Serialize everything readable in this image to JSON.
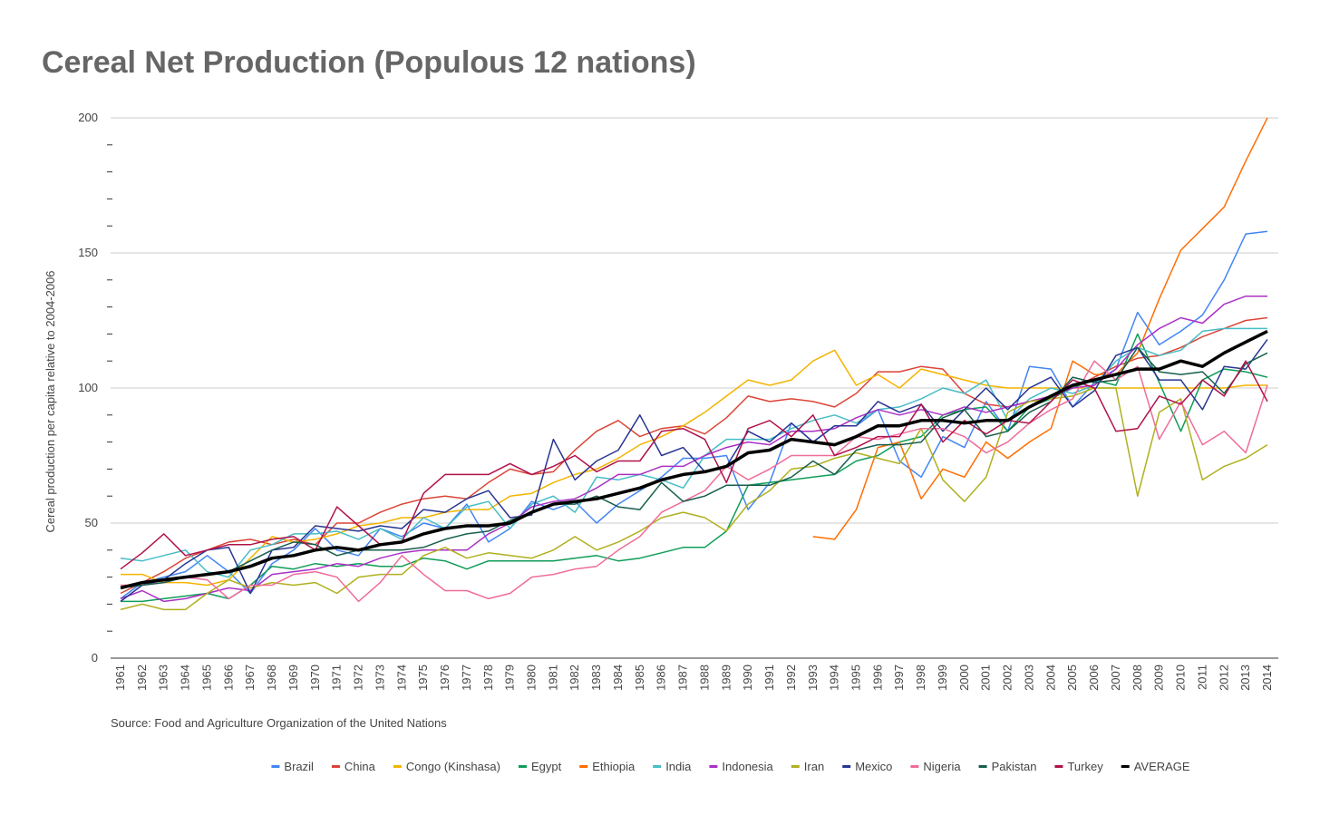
{
  "chart_data": {
    "type": "line",
    "title": "Cereal Net Production (Populous 12 nations)",
    "y_label": "Cereal production per capita relative to 2004-2006",
    "source": "Source: Food and Agriculture Organization of the United Nations",
    "categories": [
      "1961",
      "1962",
      "1963",
      "1964",
      "1965",
      "1966",
      "1967",
      "1968",
      "1969",
      "1970",
      "1971",
      "1972",
      "1973",
      "1974",
      "1975",
      "1976",
      "1977",
      "1978",
      "1979",
      "1980",
      "1981",
      "1982",
      "1983",
      "1984",
      "1985",
      "1986",
      "1987",
      "1988",
      "1989",
      "1990",
      "1991",
      "1992",
      "1993",
      "1994",
      "1995",
      "1996",
      "1997",
      "1998",
      "1999",
      "2000",
      "2001",
      "2002",
      "2003",
      "2004",
      "2005",
      "2006",
      "2007",
      "2008",
      "2009",
      "2010",
      "2011",
      "2012",
      "2013",
      "2014"
    ],
    "ylim": [
      0,
      200
    ],
    "yticks": [
      0,
      50,
      100,
      150,
      200
    ],
    "yminorticks": [
      10,
      20,
      30,
      40,
      60,
      70,
      80,
      90,
      110,
      120,
      130,
      140,
      160,
      170,
      180,
      190
    ],
    "grid": true,
    "legend": "bottom",
    "series": [
      {
        "name": "Brazil",
        "color": "#4285f4",
        "values": [
          22,
          28,
          30,
          32,
          38,
          32,
          24,
          35,
          40,
          48,
          40,
          38,
          48,
          45,
          50,
          48,
          57,
          43,
          48,
          58,
          55,
          58,
          50,
          57,
          62,
          67,
          74,
          74,
          75,
          55,
          65,
          87,
          80,
          86,
          86,
          92,
          73,
          67,
          82,
          78,
          95,
          84,
          108,
          107,
          93,
          102,
          107,
          128,
          116,
          121,
          127,
          140,
          157,
          158
        ]
      },
      {
        "name": "China",
        "color": "#db4437",
        "values": [
          24,
          28,
          32,
          37,
          40,
          43,
          44,
          42,
          44,
          42,
          50,
          50,
          54,
          57,
          59,
          60,
          59,
          65,
          70,
          68,
          69,
          77,
          84,
          88,
          82,
          85,
          86,
          83,
          89,
          97,
          95,
          96,
          95,
          93,
          98,
          106,
          106,
          108,
          107,
          98,
          94,
          93,
          95,
          97,
          100,
          104,
          108,
          111,
          112,
          115,
          119,
          122,
          125,
          126
        ]
      },
      {
        "name": "Congo (Kinshasa)",
        "color": "#f4b400",
        "values": [
          31,
          31,
          28,
          28,
          27,
          29,
          37,
          45,
          43,
          44,
          46,
          49,
          50,
          52,
          52,
          54,
          55,
          55,
          60,
          61,
          65,
          68,
          70,
          74,
          79,
          82,
          86,
          91,
          97,
          103,
          101,
          103,
          110,
          114,
          101,
          105,
          100,
          107,
          105,
          103,
          101,
          100,
          100,
          100,
          100,
          100,
          100,
          100,
          100,
          100,
          100,
          100,
          101,
          101
        ]
      },
      {
        "name": "Egypt",
        "color": "#0f9d58",
        "values": [
          21,
          21,
          22,
          23,
          24,
          22,
          27,
          34,
          33,
          35,
          34,
          35,
          34,
          34,
          37,
          36,
          33,
          36,
          36,
          36,
          36,
          37,
          38,
          36,
          37,
          39,
          41,
          41,
          47,
          64,
          65,
          66,
          67,
          68,
          73,
          75,
          80,
          82,
          90,
          92,
          93,
          84,
          93,
          96,
          100,
          103,
          101,
          120,
          102,
          84,
          103,
          107,
          106,
          104
        ]
      },
      {
        "name": "Ethiopia",
        "color": "#ff6d01",
        "values": [
          null,
          null,
          null,
          null,
          null,
          null,
          null,
          null,
          null,
          null,
          null,
          null,
          null,
          null,
          null,
          null,
          null,
          null,
          null,
          null,
          null,
          null,
          null,
          null,
          null,
          null,
          null,
          null,
          null,
          null,
          null,
          null,
          45,
          44,
          55,
          78,
          80,
          59,
          70,
          67,
          80,
          74,
          80,
          85,
          110,
          105,
          105,
          113,
          133,
          151,
          159,
          167,
          184,
          200
        ]
      },
      {
        "name": "India",
        "color": "#46bdc6",
        "values": [
          37,
          36,
          38,
          40,
          32,
          30,
          40,
          42,
          46,
          46,
          47,
          44,
          48,
          44,
          52,
          48,
          56,
          58,
          48,
          57,
          60,
          54,
          67,
          66,
          68,
          66,
          63,
          75,
          81,
          81,
          81,
          85,
          88,
          90,
          87,
          92,
          93,
          96,
          100,
          98,
          103,
          88,
          96,
          100,
          98,
          101,
          110,
          115,
          112,
          114,
          121,
          122,
          122,
          122
        ]
      },
      {
        "name": "Indonesia",
        "color": "#ab30c4",
        "values": [
          22,
          25,
          21,
          22,
          24,
          26,
          25,
          31,
          32,
          33,
          35,
          34,
          37,
          39,
          40,
          40,
          40,
          46,
          50,
          56,
          58,
          59,
          63,
          68,
          68,
          71,
          71,
          75,
          78,
          80,
          79,
          84,
          84,
          85,
          89,
          92,
          90,
          92,
          90,
          93,
          91,
          93,
          95,
          97,
          100,
          101,
          107,
          116,
          122,
          126,
          124,
          131,
          134,
          134
        ]
      },
      {
        "name": "Iran",
        "color": "#b0b01f",
        "values": [
          18,
          20,
          18,
          18,
          24,
          29,
          26,
          28,
          27,
          28,
          24,
          30,
          31,
          31,
          38,
          41,
          37,
          39,
          38,
          37,
          40,
          45,
          40,
          43,
          47,
          52,
          54,
          52,
          47,
          57,
          62,
          70,
          71,
          74,
          76,
          74,
          72,
          85,
          66,
          58,
          67,
          91,
          95,
          96,
          97,
          100,
          100,
          60,
          91,
          96,
          66,
          71,
          74,
          79
        ]
      },
      {
        "name": "Mexico",
        "color": "#283593",
        "values": [
          21,
          27,
          29,
          35,
          40,
          41,
          24,
          40,
          41,
          49,
          48,
          47,
          49,
          48,
          55,
          54,
          59,
          62,
          52,
          53,
          81,
          66,
          73,
          77,
          90,
          75,
          78,
          69,
          71,
          84,
          80,
          87,
          80,
          86,
          86,
          95,
          91,
          94,
          84,
          92,
          100,
          92,
          100,
          104,
          93,
          99,
          112,
          115,
          103,
          103,
          92,
          108,
          107,
          118
        ]
      },
      {
        "name": "Nigeria",
        "color": "#ef6c9a",
        "values": [
          27,
          27,
          28,
          30,
          29,
          22,
          27,
          27,
          31,
          32,
          30,
          21,
          28,
          38,
          31,
          25,
          25,
          22,
          24,
          30,
          31,
          33,
          34,
          40,
          45,
          54,
          58,
          62,
          71,
          66,
          70,
          75,
          75,
          75,
          82,
          81,
          83,
          85,
          85,
          82,
          76,
          80,
          87,
          92,
          96,
          110,
          103,
          108,
          81,
          95,
          79,
          84,
          76,
          101
        ]
      },
      {
        "name": "Pakistan",
        "color": "#185e4e",
        "values": [
          26,
          27,
          28,
          30,
          31,
          32,
          36,
          40,
          43,
          42,
          38,
          40,
          40,
          40,
          41,
          44,
          46,
          47,
          51,
          54,
          57,
          57,
          60,
          56,
          55,
          65,
          58,
          60,
          64,
          64,
          64,
          67,
          73,
          68,
          77,
          79,
          79,
          80,
          89,
          92,
          82,
          84,
          91,
          95,
          104,
          102,
          103,
          115,
          106,
          105,
          106,
          98,
          109,
          113
        ]
      },
      {
        "name": "Turkey",
        "color": "#b0124a",
        "values": [
          33,
          39,
          46,
          38,
          40,
          42,
          42,
          44,
          45,
          40,
          56,
          49,
          42,
          43,
          61,
          68,
          68,
          68,
          72,
          68,
          71,
          75,
          69,
          73,
          73,
          84,
          85,
          81,
          65,
          85,
          88,
          82,
          90,
          75,
          78,
          82,
          82,
          94,
          80,
          88,
          83,
          88,
          87,
          95,
          103,
          100,
          84,
          85,
          97,
          94,
          103,
          97,
          110,
          95
        ]
      },
      {
        "name": "AVERAGE",
        "color": "#000000",
        "width": 3.5,
        "values": [
          26,
          28,
          29,
          30,
          31,
          32,
          34,
          37,
          38,
          40,
          41,
          40,
          42,
          43,
          46,
          48,
          49,
          49,
          50,
          54,
          57,
          58,
          59,
          61,
          63,
          66,
          68,
          69,
          71,
          76,
          77,
          81,
          80,
          79,
          82,
          86,
          86,
          88,
          88,
          87,
          88,
          88,
          93,
          97,
          101,
          103,
          105,
          107,
          107,
          110,
          108,
          113,
          117,
          121
        ]
      }
    ]
  }
}
